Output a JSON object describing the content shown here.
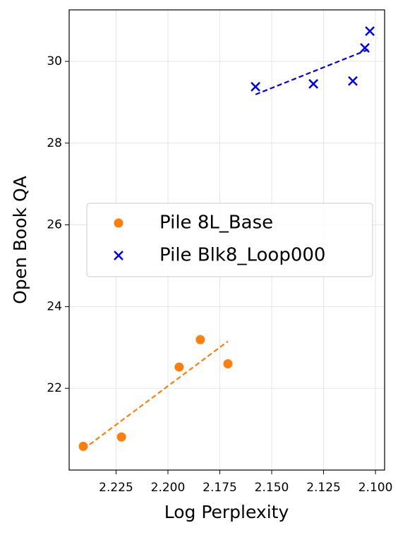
{
  "chart_data": {
    "type": "scatter",
    "xlabel": "Log Perplexity",
    "ylabel": "Open Book QA",
    "xlim": [
      2.2476,
      2.0956
    ],
    "ylim": [
      20.0,
      31.26
    ],
    "x_inverted": true,
    "xticks": [
      2.225,
      2.2,
      2.175,
      2.15,
      2.125,
      2.1
    ],
    "xtick_labels": [
      "2.225",
      "2.200",
      "2.175",
      "2.150",
      "2.125",
      "2.100"
    ],
    "yticks": [
      22,
      24,
      26,
      28,
      30
    ],
    "grid": true,
    "legend": "center",
    "series": [
      {
        "name": "Pile 8L_Base",
        "color": "#ff7f0e",
        "marker": "circle",
        "x": [
          2.2408,
          2.2224,
          2.1946,
          2.1844,
          2.1711
        ],
        "values": [
          20.58,
          20.81,
          22.52,
          23.19,
          22.6
        ],
        "trend": {
          "x": [
            2.2408,
            2.1711
          ],
          "values": [
            20.51,
            23.15
          ]
        }
      },
      {
        "name": "Pile Blk8_Loop000",
        "color": "#0000ee",
        "marker": "x",
        "x": [
          2.1578,
          2.1299,
          2.1109,
          2.1051,
          2.1027
        ],
        "values": [
          29.38,
          29.45,
          29.52,
          30.33,
          30.74
        ],
        "trend": {
          "x": [
            2.1578,
            2.1034
          ],
          "values": [
            29.19,
            30.29
          ]
        }
      }
    ]
  }
}
